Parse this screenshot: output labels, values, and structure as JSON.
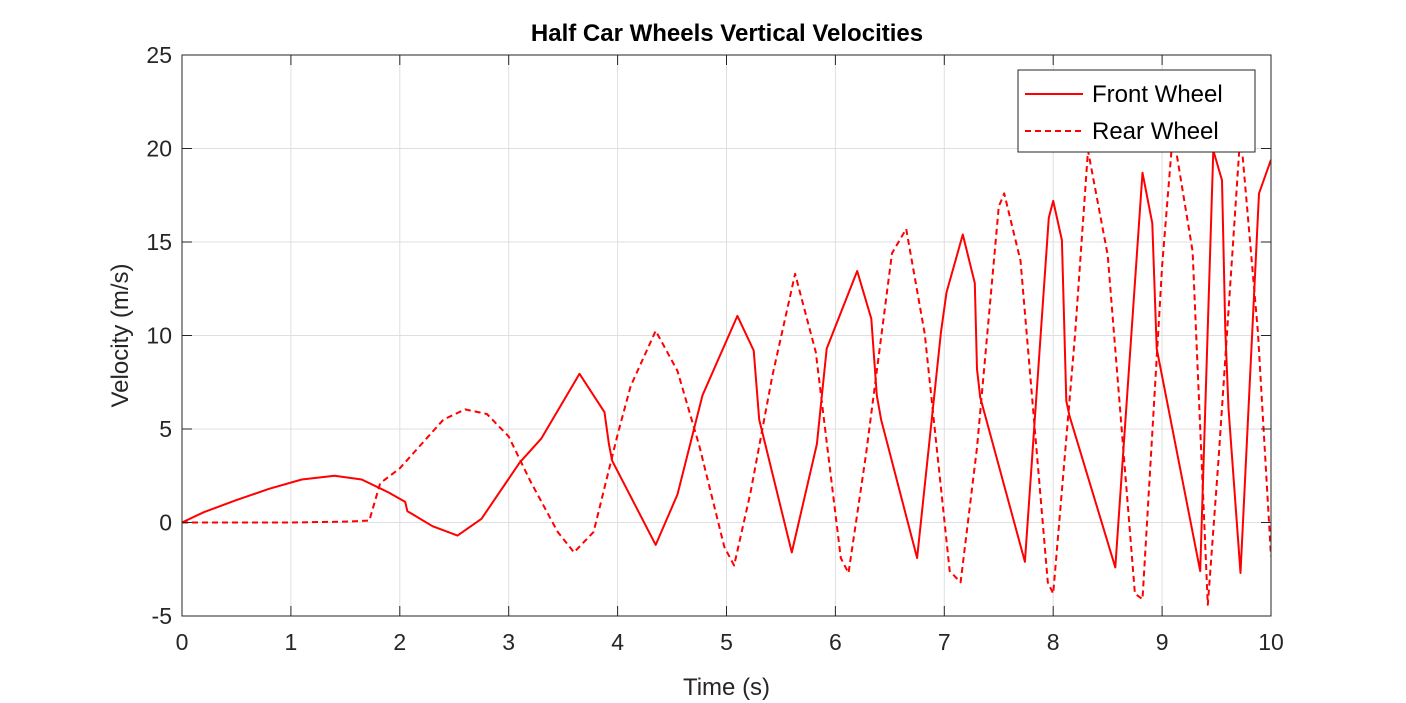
{
  "chart_data": {
    "type": "line",
    "title": "Half Car Wheels Vertical Velocities",
    "xlabel": "Time (s)",
    "ylabel": "Velocity (m/s)",
    "xlim": [
      0,
      10
    ],
    "ylim": [
      -5,
      25
    ],
    "xticks": [
      "0",
      "1",
      "2",
      "3",
      "4",
      "5",
      "6",
      "7",
      "8",
      "9",
      "10"
    ],
    "yticks": [
      "-5",
      "0",
      "5",
      "10",
      "15",
      "20",
      "25"
    ],
    "grid": true,
    "legend_position": "top-right",
    "color": "#ff0000",
    "series": [
      {
        "name": "Front Wheel",
        "style": "solid",
        "points": [
          [
            0,
            0
          ],
          [
            0.2,
            0.55
          ],
          [
            0.5,
            1.2
          ],
          [
            0.8,
            1.8
          ],
          [
            1.1,
            2.3
          ],
          [
            1.4,
            2.5
          ],
          [
            1.65,
            2.3
          ],
          [
            1.9,
            1.6
          ],
          [
            2.05,
            1.1
          ],
          [
            2.07,
            0.6
          ],
          [
            2.1,
            0.5
          ],
          [
            2.3,
            -0.2
          ],
          [
            2.53,
            -0.7
          ],
          [
            2.75,
            0.2
          ],
          [
            3.1,
            3.2
          ],
          [
            3.3,
            4.5
          ],
          [
            3.65,
            7.95
          ],
          [
            3.88,
            5.9
          ],
          [
            3.92,
            4.2
          ],
          [
            3.95,
            3.3
          ],
          [
            4.35,
            -1.2
          ],
          [
            4.55,
            1.5
          ],
          [
            4.78,
            6.8
          ],
          [
            5.1,
            11.05
          ],
          [
            5.25,
            9.2
          ],
          [
            5.3,
            5.5
          ],
          [
            5.6,
            -1.6
          ],
          [
            5.83,
            4.2
          ],
          [
            5.92,
            9.3
          ],
          [
            6.2,
            13.45
          ],
          [
            6.33,
            10.9
          ],
          [
            6.38,
            6.8
          ],
          [
            6.42,
            5.5
          ],
          [
            6.75,
            -1.9
          ],
          [
            6.97,
            10.2
          ],
          [
            7.02,
            12.3
          ],
          [
            7.17,
            15.4
          ],
          [
            7.28,
            12.8
          ],
          [
            7.3,
            8.2
          ],
          [
            7.33,
            6.7
          ],
          [
            7.74,
            -2.1
          ],
          [
            7.96,
            16.3
          ],
          [
            8.0,
            17.2
          ],
          [
            8.08,
            15.1
          ],
          [
            8.12,
            6.5
          ],
          [
            8.15,
            5.7
          ],
          [
            8.57,
            -2.4
          ],
          [
            8.82,
            18.7
          ],
          [
            8.91,
            16.0
          ],
          [
            8.95,
            9.3
          ],
          [
            9.35,
            -2.6
          ],
          [
            9.47,
            19.9
          ],
          [
            9.55,
            18.3
          ],
          [
            9.58,
            10.3
          ],
          [
            9.61,
            6.1
          ],
          [
            9.72,
            -2.7
          ],
          [
            9.89,
            17.6
          ],
          [
            10.0,
            19.4
          ]
        ]
      },
      {
        "name": "Rear Wheel",
        "style": "dashed",
        "points": [
          [
            0,
            0
          ],
          [
            0.5,
            0
          ],
          [
            1.0,
            0
          ],
          [
            1.5,
            0.05
          ],
          [
            1.72,
            0.1
          ],
          [
            1.82,
            2.1
          ],
          [
            2.0,
            2.9
          ],
          [
            2.2,
            4.2
          ],
          [
            2.4,
            5.5
          ],
          [
            2.6,
            6.05
          ],
          [
            2.8,
            5.8
          ],
          [
            3.0,
            4.6
          ],
          [
            3.2,
            2.2
          ],
          [
            3.45,
            -0.5
          ],
          [
            3.6,
            -1.6
          ],
          [
            3.78,
            -0.5
          ],
          [
            4.0,
            4.7
          ],
          [
            4.12,
            7.3
          ],
          [
            4.35,
            10.25
          ],
          [
            4.55,
            8.1
          ],
          [
            4.75,
            4.1
          ],
          [
            4.98,
            -1.3
          ],
          [
            5.07,
            -2.3
          ],
          [
            5.22,
            1.6
          ],
          [
            5.42,
            7.8
          ],
          [
            5.63,
            13.3
          ],
          [
            5.82,
            9.1
          ],
          [
            6.05,
            -1.9
          ],
          [
            6.12,
            -2.7
          ],
          [
            6.28,
            3.6
          ],
          [
            6.52,
            14.4
          ],
          [
            6.65,
            15.7
          ],
          [
            6.82,
            10.1
          ],
          [
            7.05,
            -2.6
          ],
          [
            7.15,
            -3.2
          ],
          [
            7.3,
            4.0
          ],
          [
            7.5,
            16.9
          ],
          [
            7.55,
            17.6
          ],
          [
            7.7,
            14.0
          ],
          [
            7.95,
            -3.2
          ],
          [
            8.0,
            -3.8
          ],
          [
            8.2,
            10.0
          ],
          [
            8.32,
            19.9
          ],
          [
            8.5,
            14.3
          ],
          [
            8.75,
            -3.8
          ],
          [
            8.82,
            -4.1
          ],
          [
            9.0,
            13.7
          ],
          [
            9.1,
            20.9
          ],
          [
            9.28,
            14.5
          ],
          [
            9.42,
            -4.4
          ],
          [
            9.52,
            3.5
          ],
          [
            9.72,
            20.9
          ],
          [
            9.88,
            10.2
          ],
          [
            10.0,
            -1.8
          ]
        ]
      }
    ]
  }
}
